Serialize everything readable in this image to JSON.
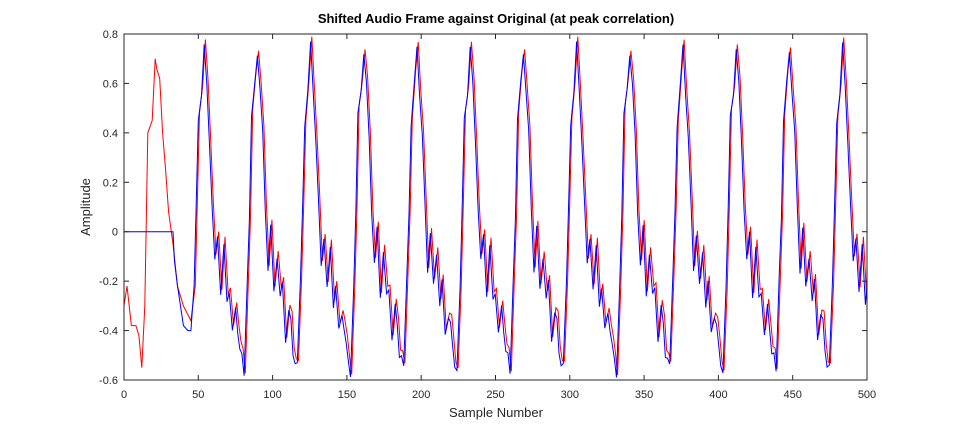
{
  "chart_data": {
    "type": "line",
    "title": "Shifted Audio Frame against Original (at peak correlation)",
    "xlabel": "Sample Number",
    "ylabel": "Amplitude",
    "xlim": [
      0,
      500
    ],
    "ylim": [
      -0.6,
      0.8
    ],
    "xticks": [
      0,
      50,
      100,
      150,
      200,
      250,
      300,
      350,
      400,
      450,
      500
    ],
    "yticks": [
      -0.6,
      -0.4,
      -0.2,
      0,
      0.2,
      0.4,
      0.6,
      0.8
    ],
    "xtick_labels": [
      "0",
      "50",
      "100",
      "150",
      "200",
      "250",
      "300",
      "350",
      "400",
      "450",
      "500"
    ],
    "ytick_labels": [
      "-0.6",
      "-0.4",
      "-0.2",
      "0",
      "0.2",
      "0.4",
      "0.6",
      "0.8"
    ],
    "grid": false,
    "legend": "none",
    "period": 35.8,
    "series": [
      {
        "color": "#ff0000",
        "x": [
          0,
          2,
          5,
          8,
          10,
          12,
          14,
          16,
          19,
          21,
          22,
          24,
          26,
          28,
          30,
          33,
          36,
          40,
          45
        ],
        "y": [
          -0.3,
          -0.22,
          -0.38,
          -0.38,
          -0.42,
          -0.55,
          -0.3,
          0.4,
          0.45,
          0.7,
          0.66,
          0.62,
          0.4,
          0.25,
          0.08,
          -0.05,
          -0.22,
          -0.3,
          -0.36
        ],
        "cycle_start": 45,
        "cycle_end": 500,
        "cycle_offset": 0.8,
        "cycle_shape": {
          "phase": [
            0,
            0.06,
            0.1,
            0.14,
            0.2,
            0.25,
            0.3,
            0.35,
            0.4,
            0.45,
            0.5,
            0.56,
            0.62,
            0.68,
            0.72,
            0.78,
            0.84,
            0.88,
            0.92,
            0.96,
            1.0
          ],
          "value": [
            -0.55,
            -0.2,
            0.1,
            0.48,
            0.62,
            0.76,
            0.6,
            0.4,
            0.12,
            -0.12,
            0.02,
            -0.22,
            -0.05,
            -0.25,
            -0.2,
            -0.4,
            -0.3,
            -0.35,
            -0.45,
            -0.5,
            -0.55
          ]
        },
        "end_value": -0.14
      },
      {
        "color": "#0000ff",
        "x": [
          0,
          30,
          33,
          34,
          36,
          38,
          40,
          43,
          45
        ],
        "y": [
          0,
          0,
          0,
          -0.12,
          -0.22,
          -0.3,
          -0.38,
          -0.4,
          -0.4
        ],
        "cycle_start": 45,
        "cycle_end": 500,
        "cycle_offset": 0,
        "cycle_shape": {
          "phase": [
            0,
            0.06,
            0.1,
            0.14,
            0.2,
            0.25,
            0.3,
            0.35,
            0.4,
            0.45,
            0.5,
            0.56,
            0.62,
            0.68,
            0.72,
            0.78,
            0.84,
            0.88,
            0.92,
            0.96,
            1.0
          ],
          "value": [
            -0.56,
            -0.2,
            0.08,
            0.45,
            0.58,
            0.74,
            0.58,
            0.38,
            0.1,
            -0.14,
            0.0,
            -0.24,
            -0.08,
            -0.28,
            -0.22,
            -0.42,
            -0.32,
            -0.38,
            -0.48,
            -0.52,
            -0.56
          ]
        },
        "end_value": -0.22
      }
    ]
  }
}
